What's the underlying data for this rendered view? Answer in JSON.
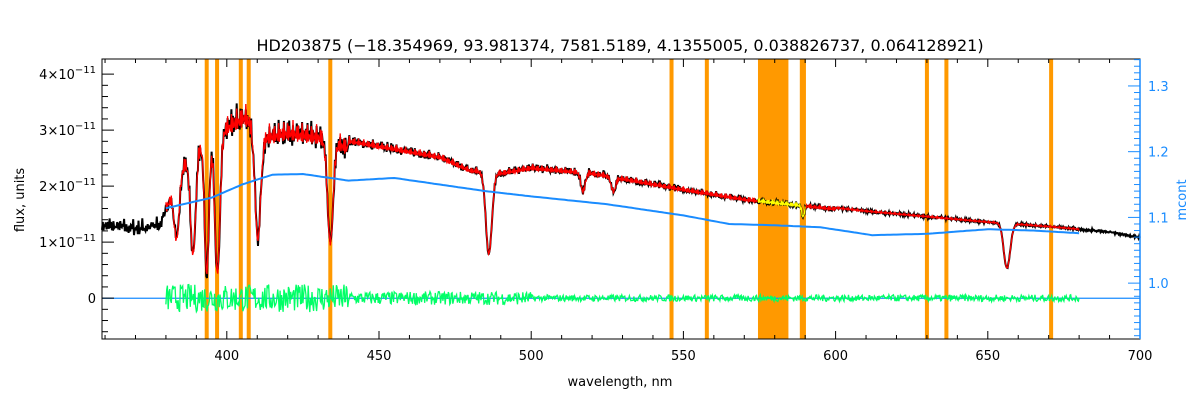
{
  "chart_data": {
    "type": "line",
    "title": "HD203875    (−18.354969, 93.981374, 7581.5189, 4.1355005, 0.038826737, 0.064128921)",
    "xlabel": "wavelength, nm",
    "ylabel": "flux, units",
    "y2label": "mcont",
    "xlim": [
      359,
      700
    ],
    "ylim": [
      -7.3e-12,
      4.27e-11
    ],
    "y2lim": [
      0.915,
      1.341
    ],
    "xticks": [
      400,
      450,
      500,
      550,
      600,
      650,
      700
    ],
    "yticks": [
      {
        "v": 0,
        "label": "0"
      },
      {
        "v": 1e-11,
        "label": "1×10",
        "exp": "−11"
      },
      {
        "v": 2e-11,
        "label": "2×10",
        "exp": "−11"
      },
      {
        "v": 3e-11,
        "label": "3×10",
        "exp": "−11"
      },
      {
        "v": 4e-11,
        "label": "4×10",
        "exp": "−11"
      }
    ],
    "y2ticks": [
      "1.0",
      "1.1",
      "1.2",
      "1.3"
    ],
    "y2tickvals": [
      1.0,
      1.1,
      1.2,
      1.3
    ],
    "colors": {
      "observed": "#000000",
      "model": "#ff0000",
      "residual": "#00ff66",
      "continuum": "#1a8cff",
      "masked": "#ff9900",
      "model_masked": "#ffff00"
    },
    "observed_continuum_1e-11": [
      [
        360,
        1.4
      ],
      [
        370,
        1.35
      ],
      [
        378,
        1.4
      ],
      [
        385,
        2.5
      ],
      [
        392,
        3.0
      ],
      [
        400,
        3.3
      ],
      [
        406,
        3.5
      ],
      [
        412,
        3.1
      ],
      [
        420,
        3.2
      ],
      [
        432,
        3.1
      ],
      [
        440,
        2.9
      ],
      [
        450,
        2.8
      ],
      [
        470,
        2.6
      ],
      [
        480,
        2.35
      ],
      [
        490,
        2.3
      ],
      [
        500,
        2.4
      ],
      [
        520,
        2.3
      ],
      [
        550,
        2.0
      ],
      [
        570,
        1.82
      ],
      [
        590,
        1.7
      ],
      [
        610,
        1.58
      ],
      [
        630,
        1.48
      ],
      [
        650,
        1.38
      ],
      [
        670,
        1.3
      ],
      [
        690,
        1.2
      ],
      [
        700,
        1.1
      ]
    ],
    "absorption_lines": [
      [
        383.5,
        0.5,
        1.2
      ],
      [
        388.9,
        0.7,
        1.2
      ],
      [
        393.4,
        0.85,
        1.0
      ],
      [
        396.9,
        0.85,
        1.2
      ],
      [
        410.2,
        0.65,
        1.3
      ],
      [
        434.0,
        0.65,
        1.3
      ],
      [
        486.1,
        0.65,
        1.4
      ],
      [
        517,
        0.15,
        1
      ],
      [
        527,
        0.12,
        1
      ],
      [
        589.3,
        0.12,
        0.6
      ],
      [
        656.3,
        0.6,
        1.5
      ]
    ],
    "model_range": [
      380,
      680
    ],
    "model_masked_range": [
      574.5,
      590
    ],
    "continuum_mcont": [
      [
        380,
        1.114
      ],
      [
        395,
        1.13
      ],
      [
        405,
        1.15
      ],
      [
        415,
        1.165
      ],
      [
        425,
        1.166
      ],
      [
        440,
        1.156
      ],
      [
        455,
        1.16
      ],
      [
        470,
        1.15
      ],
      [
        485,
        1.14
      ],
      [
        500,
        1.132
      ],
      [
        525,
        1.12
      ],
      [
        550,
        1.103
      ],
      [
        565,
        1.09
      ],
      [
        580,
        1.088
      ],
      [
        595,
        1.085
      ],
      [
        612,
        1.073
      ],
      [
        630,
        1.075
      ],
      [
        650,
        1.082
      ],
      [
        665,
        1.08
      ],
      [
        680,
        1.076
      ]
    ],
    "residual_range": [
      380,
      680
    ],
    "zero_line_mcont": 0.977,
    "masked_lines": [
      393.4,
      396.8,
      404.6,
      407.2,
      434.0,
      546.1,
      557.7,
      588.9,
      589.6,
      630.0,
      636.4,
      670.8
    ],
    "masked_band": [
      574.5,
      584.5
    ]
  }
}
